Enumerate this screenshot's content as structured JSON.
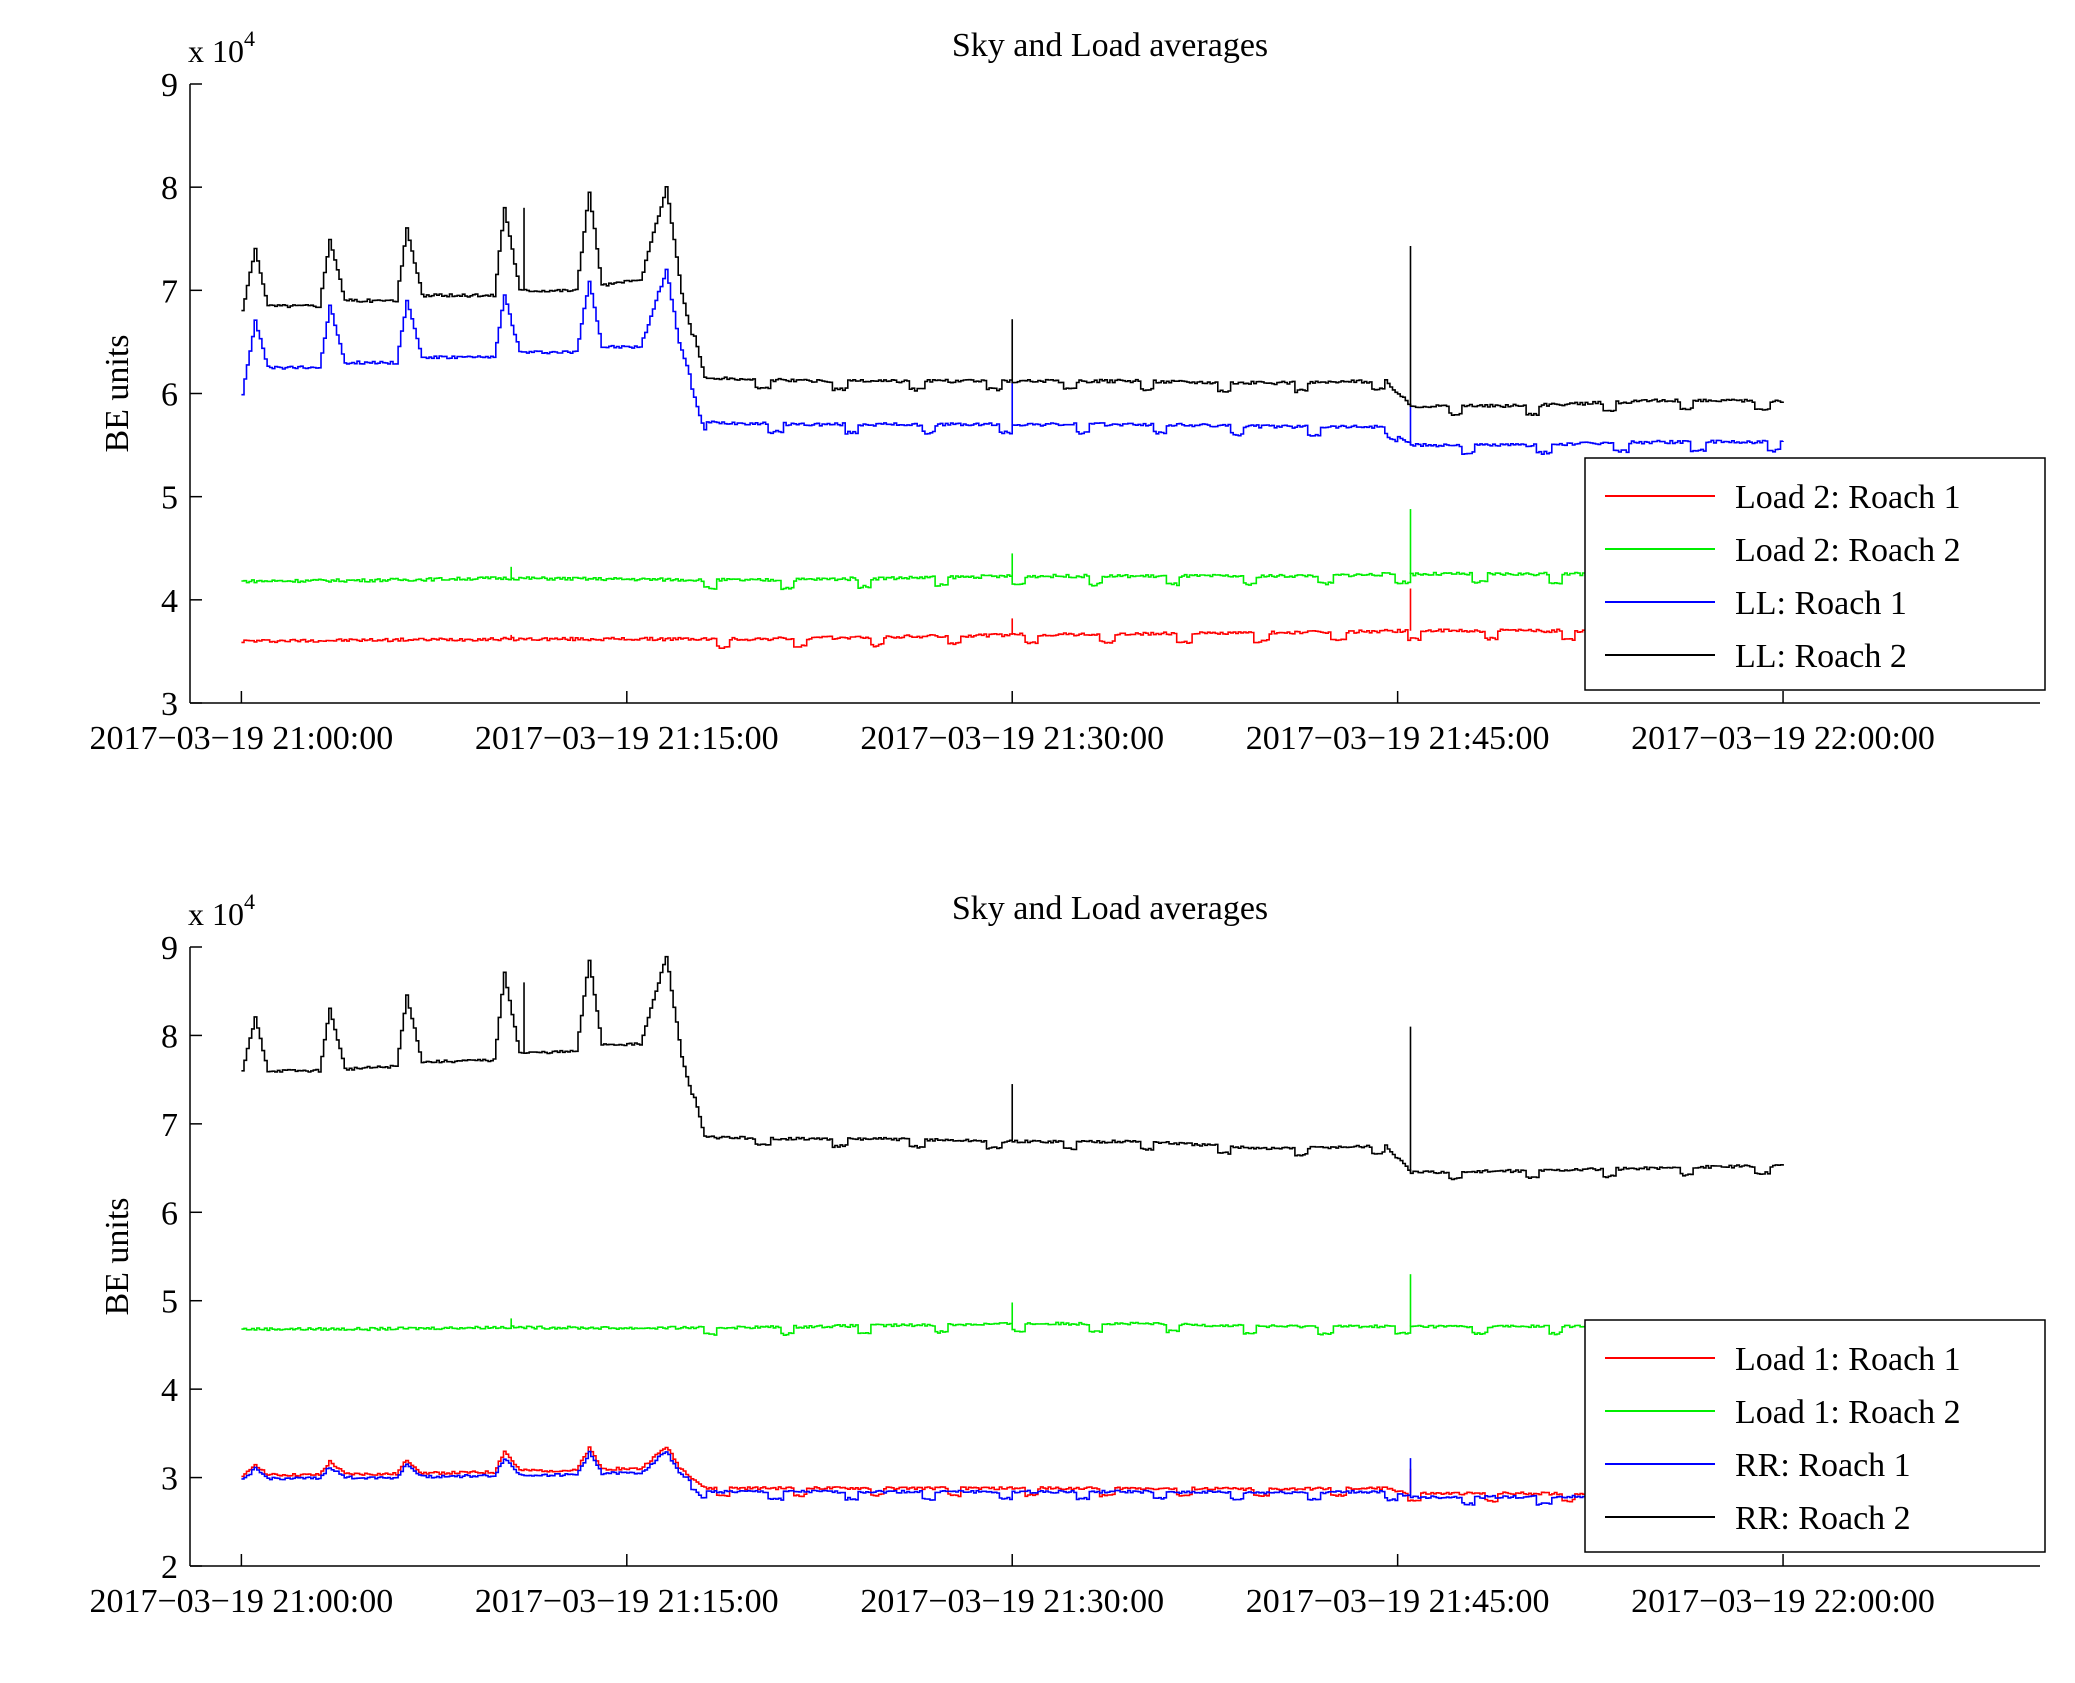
{
  "chart_data": [
    {
      "type": "line",
      "title": "Sky and Load averages",
      "ylabel": "BE units",
      "y_exponent_label": "x 10",
      "y_exponent_power": "4",
      "y_multiplier": 10000,
      "ylim": [
        3,
        9
      ],
      "yticks": [
        3,
        4,
        5,
        6,
        7,
        8,
        9
      ],
      "xlim": [
        "2017-03-19 20:58:00",
        "2017-03-19 22:10:00"
      ],
      "xticks": [
        "2017-03-19 21:00:00",
        "2017-03-19 21:15:00",
        "2017-03-19 21:30:00",
        "2017-03-19 21:45:00",
        "2017-03-19 22:00:00"
      ],
      "grid": false,
      "legend_position": "bottom-right",
      "series": [
        {
          "name": "Load 2: Roach 1",
          "color": "#ff0000",
          "x_minutes": [
            0,
            5,
            10,
            15,
            20,
            25,
            30,
            35,
            40,
            43,
            45,
            50,
            55,
            60
          ],
          "y": [
            3.6,
            3.61,
            3.62,
            3.62,
            3.62,
            3.64,
            3.66,
            3.67,
            3.68,
            3.69,
            3.7,
            3.7,
            3.7,
            3.7
          ],
          "spikes": [
            {
              "x_minutes": 10.5,
              "y": 3.66
            },
            {
              "x_minutes": 30.0,
              "y": 3.82
            },
            {
              "x_minutes": 45.5,
              "y": 4.11
            }
          ]
        },
        {
          "name": "Load 2: Roach 2",
          "color": "#00ee00",
          "x_minutes": [
            0,
            5,
            10,
            15,
            20,
            25,
            30,
            35,
            40,
            43,
            45,
            50,
            55,
            60
          ],
          "y": [
            4.18,
            4.19,
            4.21,
            4.2,
            4.19,
            4.21,
            4.23,
            4.23,
            4.23,
            4.24,
            4.25,
            4.25,
            4.25,
            4.25
          ],
          "spikes": [
            {
              "x_minutes": 10.5,
              "y": 4.32
            },
            {
              "x_minutes": 30.0,
              "y": 4.45
            },
            {
              "x_minutes": 45.5,
              "y": 4.88
            }
          ]
        },
        {
          "name": "LL: Roach 1",
          "color": "#0000ff",
          "x_minutes": [
            0,
            0.5,
            1,
            3,
            3.4,
            4,
            6,
            6.4,
            7,
            9.8,
            10.2,
            10.8,
            13,
            13.5,
            14,
            15.5,
            16.5,
            17,
            18,
            22,
            25,
            30,
            35,
            40,
            44.5,
            45.5,
            50,
            55,
            60
          ],
          "y": [
            6.0,
            6.7,
            6.25,
            6.25,
            6.85,
            6.3,
            6.3,
            6.9,
            6.35,
            6.35,
            6.95,
            6.4,
            6.4,
            7.1,
            6.45,
            6.45,
            7.2,
            6.5,
            5.72,
            5.7,
            5.7,
            5.7,
            5.7,
            5.68,
            5.68,
            5.5,
            5.5,
            5.53,
            5.53
          ],
          "spikes": [
            {
              "x_minutes": 30.0,
              "y": 6.1
            },
            {
              "x_minutes": 45.5,
              "y": 5.9
            }
          ]
        },
        {
          "name": "LL: Roach 2",
          "color": "#000000",
          "x_minutes": [
            0,
            0.5,
            1,
            3,
            3.4,
            4,
            6,
            6.4,
            7,
            9.8,
            10.2,
            10.8,
            13,
            13.5,
            14,
            15.5,
            16.5,
            17,
            18,
            22,
            25,
            30,
            35,
            40,
            44.5,
            45.5,
            50,
            55,
            60
          ],
          "y": [
            6.8,
            7.4,
            6.85,
            6.85,
            7.5,
            6.9,
            6.9,
            7.6,
            6.95,
            6.95,
            7.8,
            7.0,
            7.0,
            7.95,
            7.05,
            7.1,
            8.0,
            7.15,
            6.15,
            6.12,
            6.12,
            6.12,
            6.12,
            6.1,
            6.12,
            5.88,
            5.88,
            5.93,
            5.93
          ],
          "spikes": [
            {
              "x_minutes": 11.0,
              "y": 7.8
            },
            {
              "x_minutes": 30.0,
              "y": 6.72
            },
            {
              "x_minutes": 45.5,
              "y": 7.43
            }
          ]
        }
      ]
    },
    {
      "type": "line",
      "title": "Sky and Load averages",
      "ylabel": "BE units",
      "y_exponent_label": "x 10",
      "y_exponent_power": "4",
      "y_multiplier": 10000,
      "ylim": [
        2,
        9
      ],
      "yticks": [
        2,
        3,
        4,
        5,
        6,
        7,
        8,
        9
      ],
      "xlim": [
        "2017-03-19 20:58:00",
        "2017-03-19 22:10:00"
      ],
      "xticks": [
        "2017-03-19 21:00:00",
        "2017-03-19 21:15:00",
        "2017-03-19 21:30:00",
        "2017-03-19 21:45:00",
        "2017-03-19 22:00:00"
      ],
      "grid": false,
      "legend_position": "bottom-right",
      "series": [
        {
          "name": "Load 1: Roach 1",
          "color": "#ff0000",
          "x_minutes": [
            0,
            0.5,
            1,
            3,
            3.4,
            4,
            6,
            6.4,
            7,
            9.8,
            10.2,
            10.8,
            13,
            13.5,
            14,
            15.5,
            16.5,
            17,
            18,
            25,
            30,
            35,
            40,
            44.5,
            45.5,
            50,
            55,
            60
          ],
          "y": [
            3.0,
            3.15,
            3.03,
            3.03,
            3.18,
            3.04,
            3.04,
            3.2,
            3.05,
            3.06,
            3.3,
            3.08,
            3.08,
            3.33,
            3.1,
            3.1,
            3.35,
            3.12,
            2.88,
            2.88,
            2.88,
            2.88,
            2.87,
            2.88,
            2.82,
            2.82,
            2.82,
            2.82
          ],
          "spikes": [
            {
              "x_minutes": 45.5,
              "y": 3.1
            }
          ]
        },
        {
          "name": "Load 1: Roach 2",
          "color": "#00ee00",
          "x_minutes": [
            0,
            5,
            10,
            15,
            20,
            25,
            30,
            35,
            40,
            45,
            50,
            55,
            60
          ],
          "y": [
            4.68,
            4.68,
            4.7,
            4.69,
            4.7,
            4.72,
            4.74,
            4.74,
            4.71,
            4.71,
            4.71,
            4.71,
            4.71
          ],
          "spikes": [
            {
              "x_minutes": 10.5,
              "y": 4.8
            },
            {
              "x_minutes": 30.0,
              "y": 4.98
            },
            {
              "x_minutes": 45.5,
              "y": 5.3
            }
          ]
        },
        {
          "name": "RR: Roach 1",
          "color": "#0000ff",
          "x_minutes": [
            0,
            0.5,
            1,
            3,
            3.4,
            4,
            6,
            6.4,
            7,
            9.8,
            10.2,
            10.8,
            13,
            13.5,
            14,
            15.5,
            16.5,
            17,
            18,
            25,
            30,
            35,
            40,
            44.5,
            45.5,
            50,
            55,
            60
          ],
          "y": [
            2.97,
            3.1,
            2.99,
            2.99,
            3.12,
            3.0,
            3.0,
            3.15,
            3.01,
            3.02,
            3.22,
            3.03,
            3.03,
            3.28,
            3.05,
            3.05,
            3.3,
            3.06,
            2.84,
            2.84,
            2.84,
            2.84,
            2.83,
            2.84,
            2.78,
            2.78,
            2.79,
            2.79
          ],
          "spikes": [
            {
              "x_minutes": 45.5,
              "y": 3.22
            }
          ]
        },
        {
          "name": "RR: Roach 2",
          "color": "#000000",
          "x_minutes": [
            0,
            0.5,
            1,
            3,
            3.4,
            4,
            6,
            6.4,
            7,
            9.8,
            10.2,
            10.8,
            13,
            13.5,
            14,
            15.5,
            16.5,
            17,
            18,
            22,
            25,
            30,
            35,
            40,
            44.5,
            45.5,
            50,
            55,
            60
          ],
          "y": [
            7.6,
            8.2,
            7.6,
            7.6,
            8.3,
            7.62,
            7.65,
            8.45,
            7.7,
            7.72,
            8.7,
            7.8,
            7.82,
            8.85,
            7.9,
            7.9,
            8.9,
            7.95,
            6.85,
            6.83,
            6.83,
            6.8,
            6.8,
            6.72,
            6.75,
            6.45,
            6.47,
            6.5,
            6.53
          ],
          "spikes": [
            {
              "x_minutes": 11.0,
              "y": 8.6
            },
            {
              "x_minutes": 30.0,
              "y": 7.45
            },
            {
              "x_minutes": 45.5,
              "y": 8.1
            }
          ]
        }
      ]
    }
  ]
}
